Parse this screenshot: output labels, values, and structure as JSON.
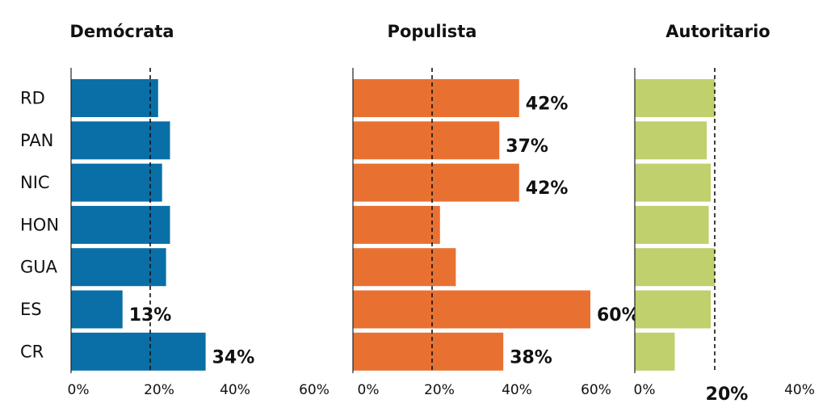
{
  "chart_data": {
    "type": "bar",
    "orientation": "horizontal",
    "categories": [
      "RD",
      "PAN",
      "NIC",
      "HON",
      "GUA",
      "ES",
      "CR"
    ],
    "panels": [
      {
        "title": "Demócrata",
        "color": "#0a6fa6",
        "values": [
          22,
          25,
          23,
          25,
          24,
          13,
          34
        ],
        "labels": [
          "",
          "",
          "",
          "",
          "",
          "13%",
          "34%"
        ],
        "xlim": [
          0,
          60
        ],
        "ticks": [
          "0%",
          "20%",
          "40%",
          "60%"
        ],
        "reference_line": 20
      },
      {
        "title": "Populista",
        "color": "#e87132",
        "values": [
          42,
          37,
          42,
          22,
          26,
          60,
          38
        ],
        "labels": [
          "42%",
          "37%",
          "42%",
          "",
          "",
          "60%",
          "38%"
        ],
        "xlim": [
          0,
          60
        ],
        "ticks": [
          "0%",
          "20%",
          "40%",
          "60%"
        ],
        "reference_line": 20
      },
      {
        "title": "Autoritario",
        "color": "#bfd06c",
        "values": [
          20,
          18,
          19,
          18.5,
          20,
          19,
          10
        ],
        "labels": [
          "",
          "",
          "",
          "",
          "",
          "",
          ""
        ],
        "xlim": [
          0,
          40
        ],
        "ticks": [
          "0%",
          "20%",
          "40%"
        ],
        "bold_ticks": [
          "20%"
        ],
        "reference_line": 20
      }
    ],
    "grid": false,
    "legend": "none"
  }
}
